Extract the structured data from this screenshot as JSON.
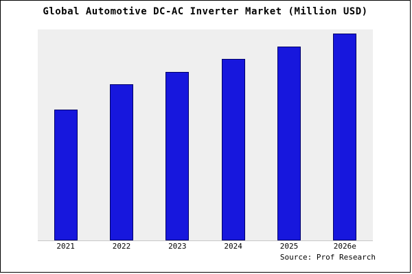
{
  "title": "Global Automotive DC-AC Inverter Market (Million USD)",
  "source": "Source: Prof Research",
  "colors": {
    "bar_fill": "#1717dd",
    "bar_border": "#000066",
    "plot_bg": "#efefef"
  },
  "chart_data": {
    "type": "bar",
    "title": "Global Automotive DC-AC Inverter Market (Million USD)",
    "categories": [
      "2021",
      "2022",
      "2023",
      "2024",
      "2025",
      "2026e"
    ],
    "values": [
      62,
      74,
      80,
      86,
      92,
      98
    ],
    "xlabel": "",
    "ylabel": "",
    "ylim": [
      0,
      100
    ],
    "y_axis_labels_visible": false,
    "grid": false,
    "legend": false,
    "annotation": "Source: Prof Research"
  }
}
